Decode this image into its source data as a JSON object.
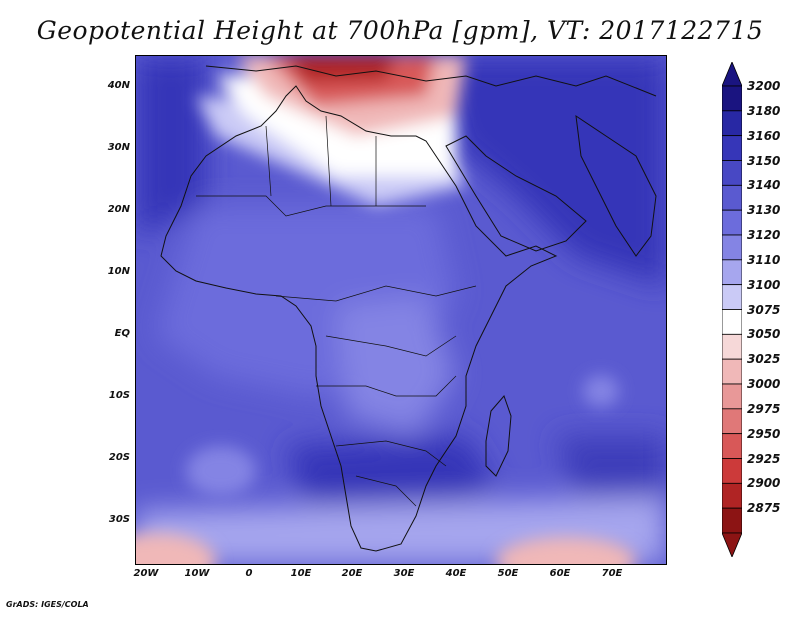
{
  "title": "Geopotential Height at 700hPa [gpm], VT: 2017122715",
  "lat_labels": [
    "40N",
    "30N",
    "20N",
    "10N",
    "EQ",
    "10S",
    "20S",
    "30S"
  ],
  "lon_labels": [
    "20W",
    "10W",
    "0",
    "10E",
    "20E",
    "30E",
    "40E",
    "50E",
    "60E",
    "70E"
  ],
  "colorbar": {
    "levels": [
      "3200",
      "3180",
      "3160",
      "3150",
      "3140",
      "3130",
      "3120",
      "3110",
      "3100",
      "3075",
      "3050",
      "3025",
      "3000",
      "2975",
      "2950",
      "2925",
      "2900",
      "2875"
    ],
    "colors": [
      "#1a1480",
      "#2828a4",
      "#3636b8",
      "#4848c4",
      "#5a5ad0",
      "#6c6cdc",
      "#8484e4",
      "#a6a6ee",
      "#cacaf6",
      "#ffffff",
      "#f6d8d8",
      "#f0b8b8",
      "#e89898",
      "#e07878",
      "#d85858",
      "#cc3a3a",
      "#b02424",
      "#8c1414"
    ]
  },
  "credit": "GrADS: IGES/COLA"
}
